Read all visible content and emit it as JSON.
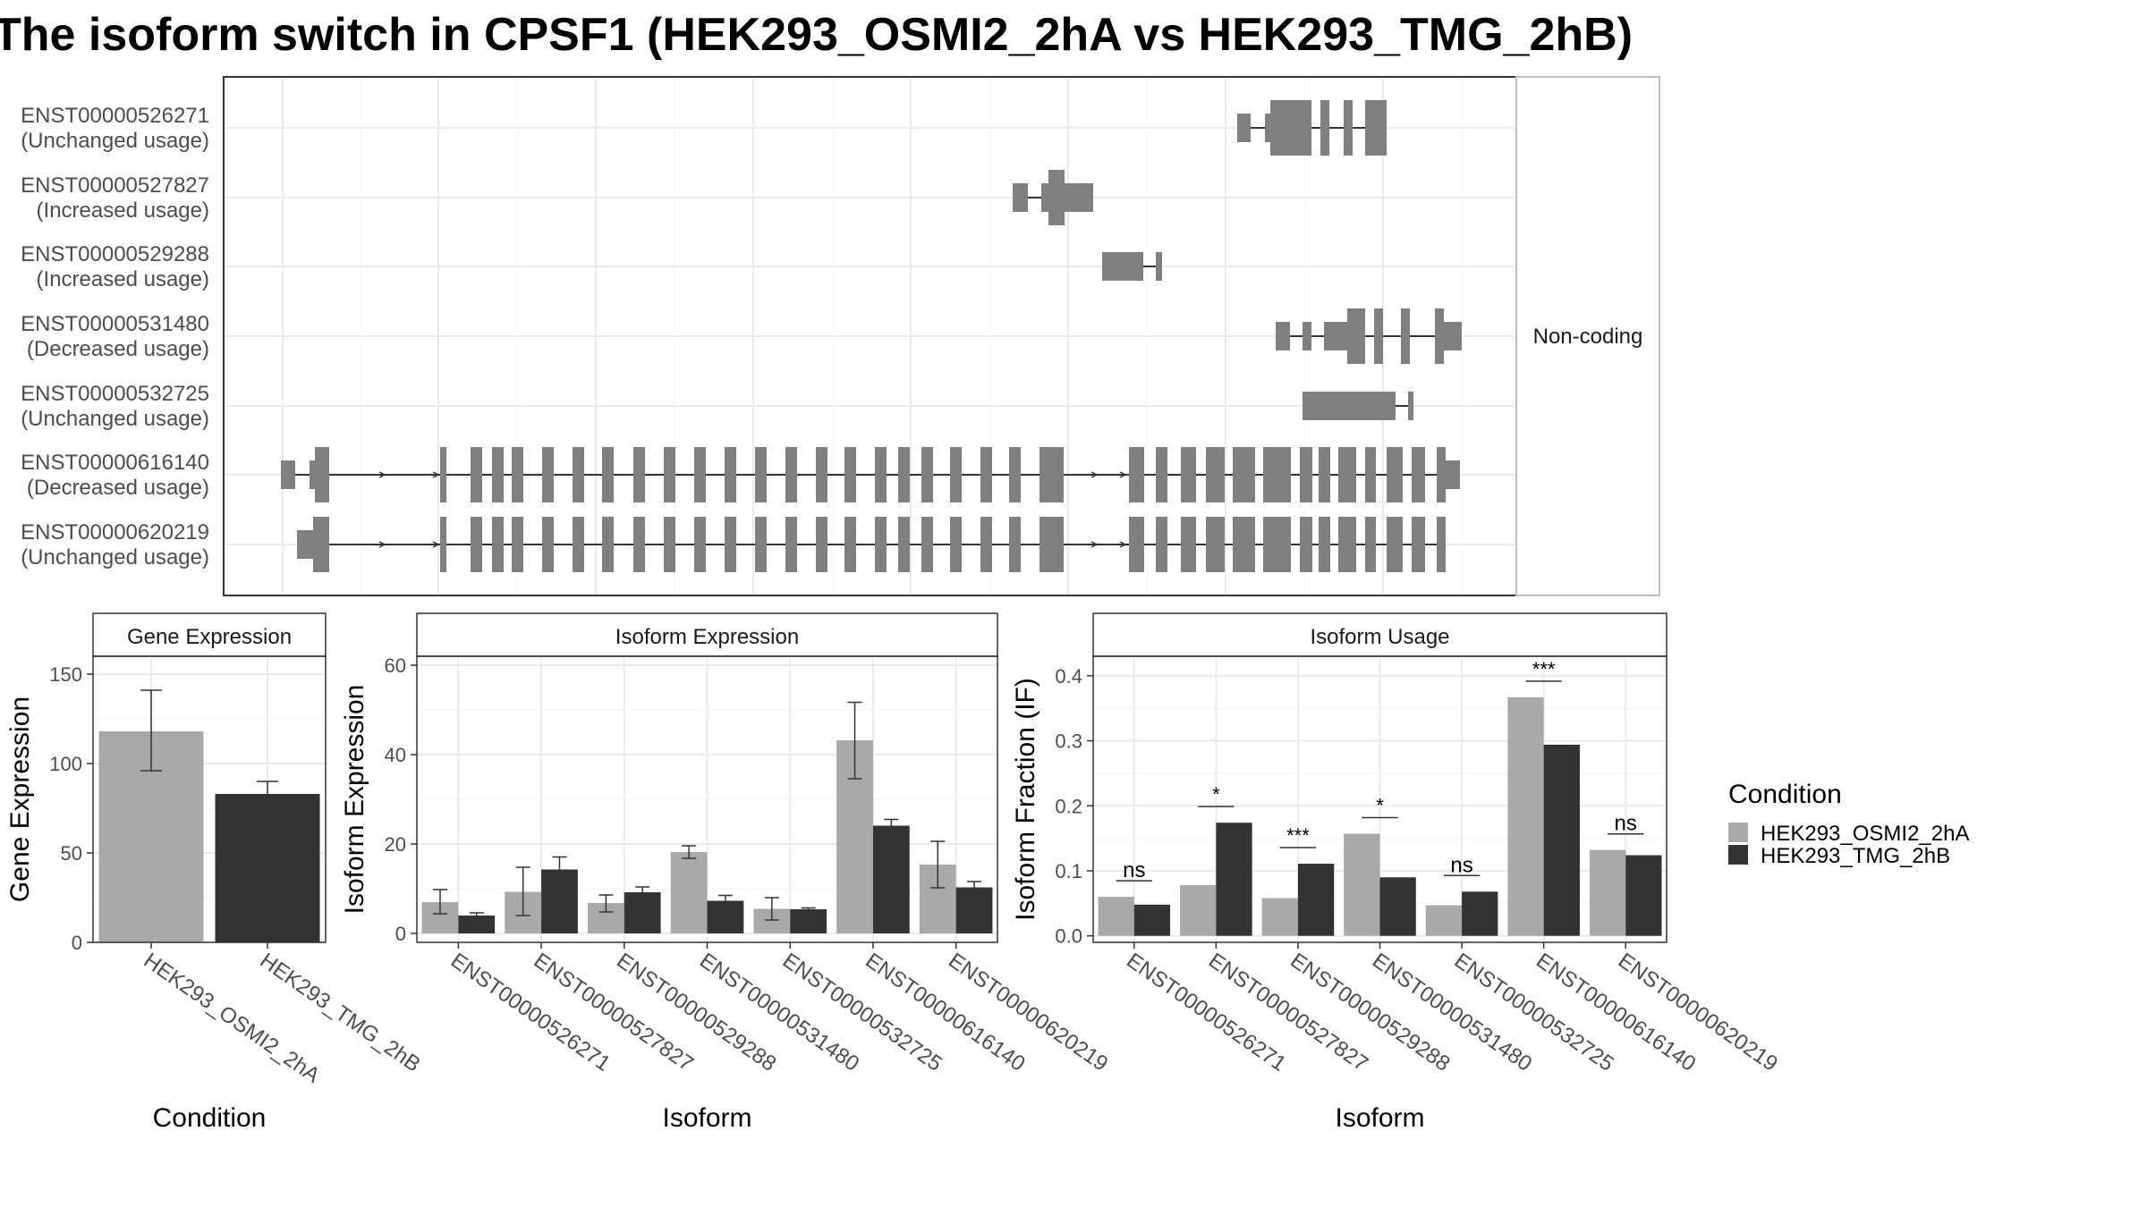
{
  "title": "The isoform switch in CPSF1 (HEK293_OSMI2_2hA vs HEK293_TMG_2hB)",
  "structure_panel": {
    "facet_label": "Non-coding",
    "isoforms": [
      {
        "id": "ENST00000526271",
        "status": "(Unchanged usage)"
      },
      {
        "id": "ENST00000527827",
        "status": "(Increased usage)"
      },
      {
        "id": "ENST00000529288",
        "status": "(Increased usage)"
      },
      {
        "id": "ENST00000531480",
        "status": "(Decreased usage)"
      },
      {
        "id": "ENST00000532725",
        "status": "(Unchanged usage)"
      },
      {
        "id": "ENST00000616140",
        "status": "(Decreased usage)"
      },
      {
        "id": "ENST00000620219",
        "status": "(Unchanged usage)"
      }
    ],
    "feature_color": "#808080"
  },
  "legend": {
    "title": "Condition",
    "items": [
      {
        "label": "HEK293_OSMI2_2hA",
        "color": "#a9a9a9"
      },
      {
        "label": "HEK293_TMG_2hB",
        "color": "#333333"
      }
    ]
  },
  "chart_data": [
    {
      "type": "bar",
      "title": "Gene Expression",
      "xlabel": "Condition",
      "ylabel": "Gene Expression",
      "ylim": [
        0,
        160
      ],
      "yticks": [
        0,
        50,
        100,
        150
      ],
      "categories": [
        "HEK293_OSMI2_2hA",
        "HEK293_TMG_2hB"
      ],
      "values": [
        118,
        83
      ],
      "errors": [
        [
          96,
          141
        ],
        [
          76,
          90
        ]
      ],
      "colors": [
        "#a9a9a9",
        "#333333"
      ]
    },
    {
      "type": "bar",
      "title": "Isoform Expression",
      "xlabel": "Isoform",
      "ylabel": "Isoform Expression",
      "ylim": [
        -2,
        62
      ],
      "yticks": [
        0,
        20,
        40,
        60
      ],
      "categories": [
        "ENST00000526271",
        "ENST00000527827",
        "ENST00000529288",
        "ENST00000531480",
        "ENST00000532725",
        "ENST00000616140",
        "ENST00000620219"
      ],
      "series": [
        {
          "name": "HEK293_OSMI2_2hA",
          "values": [
            7,
            9.3,
            6.8,
            18.2,
            5.5,
            43.2,
            15.4
          ],
          "errors": [
            [
              4.4,
              9.8
            ],
            [
              4.0,
              14.8
            ],
            [
              4.8,
              8.6
            ],
            [
              16.8,
              19.6
            ],
            [
              3.0,
              8.0
            ],
            [
              34.6,
              51.7
            ],
            [
              10.2,
              20.6
            ]
          ]
        },
        {
          "name": "HEK293_TMG_2hB",
          "values": [
            4,
            14.3,
            9.2,
            7.3,
            5.4,
            24.1,
            10.3
          ],
          "errors": [
            [
              3.4,
              4.6
            ],
            [
              11.5,
              17.1
            ],
            [
              8.0,
              10.4
            ],
            [
              6.1,
              8.5
            ],
            [
              5.1,
              5.7
            ],
            [
              22.7,
              25.5
            ],
            [
              9.0,
              11.6
            ]
          ]
        }
      ]
    },
    {
      "type": "bar",
      "title": "Isoform Usage",
      "xlabel": "Isoform",
      "ylabel": "Isoform Fraction (IF)",
      "ylim": [
        -0.01,
        0.43
      ],
      "yticks": [
        0.0,
        0.1,
        0.2,
        0.3,
        0.4
      ],
      "categories": [
        "ENST00000526271",
        "ENST00000527827",
        "ENST00000529288",
        "ENST00000531480",
        "ENST00000532725",
        "ENST00000616140",
        "ENST00000620219"
      ],
      "series": [
        {
          "name": "HEK293_OSMI2_2hA",
          "values": [
            0.06,
            0.078,
            0.058,
            0.157,
            0.047,
            0.367,
            0.132
          ]
        },
        {
          "name": "HEK293_TMG_2hB",
          "values": [
            0.048,
            0.174,
            0.111,
            0.09,
            0.068,
            0.294,
            0.124
          ]
        }
      ],
      "significance": [
        "ns",
        "*",
        "***",
        "*",
        "ns",
        "***",
        "ns"
      ]
    }
  ]
}
